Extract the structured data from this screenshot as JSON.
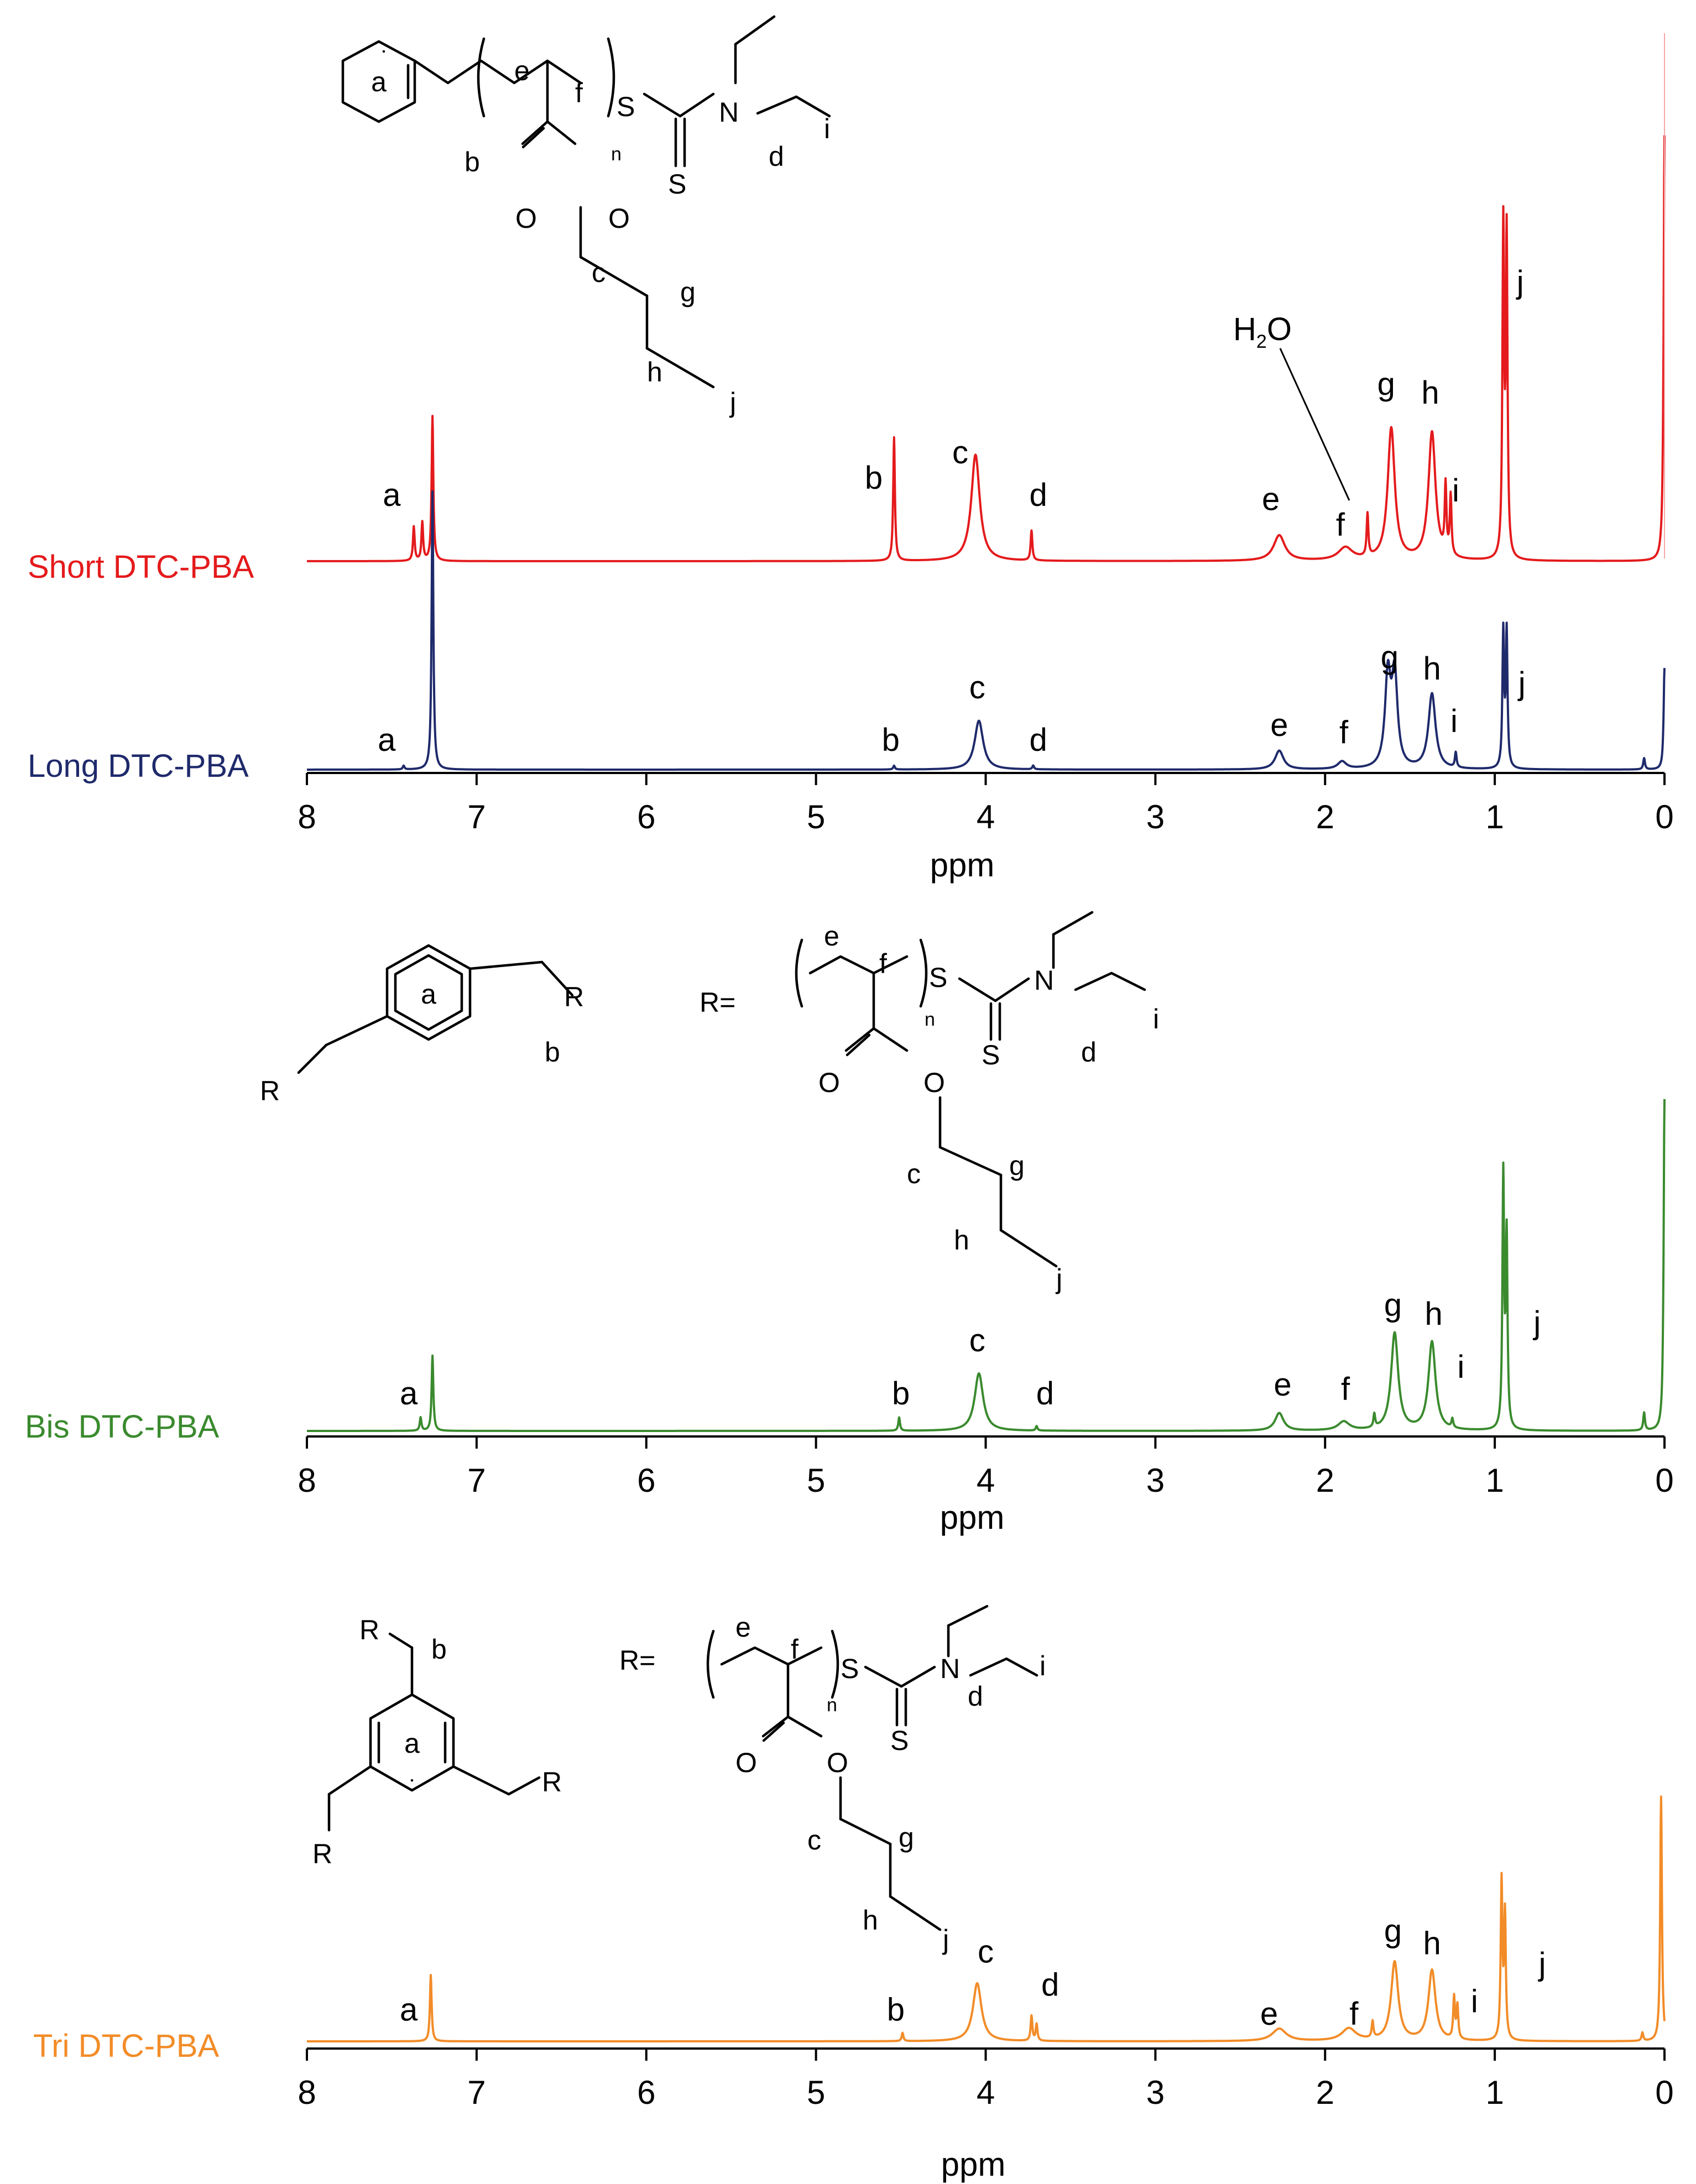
{
  "chart_data": [
    {
      "type": "line",
      "xlabel": "ppm",
      "xlim": [
        8,
        0
      ],
      "x_reversed": true,
      "ticks": [
        "8",
        "7",
        "6",
        "5",
        "4",
        "3",
        "2",
        "1",
        "0"
      ],
      "grid": false,
      "structure_labels": {
        "atoms": [
          "S",
          "N",
          "S",
          "O",
          "O"
        ],
        "n": "n",
        "letters": [
          "a",
          "b",
          "c",
          "d",
          "e",
          "f",
          "g",
          "h",
          "i",
          "j"
        ]
      },
      "water_label": {
        "main": "H",
        "sub": "2",
        "tail": "O"
      },
      "series": [
        {
          "name": "Short DTC-PBA",
          "color": "#e41a1c",
          "peaks": [
            {
              "x": 7.37,
              "height": 0.08
            },
            {
              "x": 7.32,
              "height": 0.09
            },
            {
              "x": 7.26,
              "height": 0.34
            },
            {
              "x": 4.54,
              "height": 0.29
            },
            {
              "x": 4.06,
              "height": 0.25,
              "width": 0.03
            },
            {
              "x": 3.73,
              "height": 0.07
            },
            {
              "x": 2.27,
              "height": 0.06,
              "width": 0.04
            },
            {
              "x": 1.88,
              "height": 0.03,
              "width": 0.05
            },
            {
              "x": 1.75,
              "height": 0.1
            },
            {
              "x": 1.61,
              "height": 0.31,
              "width": 0.025
            },
            {
              "x": 1.37,
              "height": 0.3,
              "width": 0.025
            },
            {
              "x": 1.29,
              "height": 0.16
            },
            {
              "x": 1.26,
              "height": 0.14
            },
            {
              "x": 0.95,
              "height": 0.77
            },
            {
              "x": 0.93,
              "height": 0.75
            },
            {
              "x": 0.0,
              "height": 1.0
            }
          ],
          "labels": [
            {
              "text": "a",
              "x": 7.5,
              "y": 0.13
            },
            {
              "text": "b",
              "x": 4.66,
              "y": 0.17
            },
            {
              "text": "c",
              "x": 4.15,
              "y": 0.23
            },
            {
              "text": "d",
              "x": 3.69,
              "y": 0.13
            },
            {
              "text": "e",
              "x": 2.32,
              "y": 0.12
            },
            {
              "text": "f",
              "x": 1.91,
              "y": 0.06
            },
            {
              "text": "g",
              "x": 1.64,
              "y": 0.39
            },
            {
              "text": "h",
              "x": 1.38,
              "y": 0.37
            },
            {
              "text": "i",
              "x": 1.23,
              "y": 0.14
            },
            {
              "text": "j",
              "x": 0.85,
              "y": 0.63
            }
          ]
        },
        {
          "name": "Long DTC-PBA",
          "color": "#1f2a6b",
          "peaks": [
            {
              "x": 7.43,
              "height": 0.01
            },
            {
              "x": 7.26,
              "height": 0.74
            },
            {
              "x": 4.54,
              "height": 0.01
            },
            {
              "x": 4.04,
              "height": 0.13,
              "width": 0.03
            },
            {
              "x": 3.72,
              "height": 0.01
            },
            {
              "x": 2.27,
              "height": 0.05,
              "width": 0.03
            },
            {
              "x": 1.9,
              "height": 0.02,
              "width": 0.03
            },
            {
              "x": 1.63,
              "height": 0.24,
              "width": 0.02
            },
            {
              "x": 1.59,
              "height": 0.24,
              "width": 0.02
            },
            {
              "x": 1.37,
              "height": 0.2,
              "width": 0.025
            },
            {
              "x": 1.23,
              "height": 0.04
            },
            {
              "x": 0.95,
              "height": 0.36
            },
            {
              "x": 0.93,
              "height": 0.36
            },
            {
              "x": 0.12,
              "height": 0.03
            },
            {
              "x": 0.0,
              "height": 0.27
            }
          ],
          "labels": [
            {
              "text": "a",
              "x": 7.53,
              "y": 0.05
            },
            {
              "text": "b",
              "x": 4.56,
              "y": 0.05
            },
            {
              "text": "c",
              "x": 4.05,
              "y": 0.19
            },
            {
              "text": "d",
              "x": 3.69,
              "y": 0.05
            },
            {
              "text": "e",
              "x": 2.27,
              "y": 0.09
            },
            {
              "text": "f",
              "x": 1.89,
              "y": 0.07
            },
            {
              "text": "g",
              "x": 1.62,
              "y": 0.27
            },
            {
              "text": "h",
              "x": 1.37,
              "y": 0.24
            },
            {
              "text": "i",
              "x": 1.24,
              "y": 0.1
            },
            {
              "text": "j",
              "x": 0.84,
              "y": 0.2
            }
          ]
        },
        {
          "name": "Bis DTC-PBA",
          "color": "#3a8a2e",
          "peaks": [
            {
              "x": 7.33,
              "height": 0.03
            },
            {
              "x": 7.26,
              "height": 0.17
            },
            {
              "x": 4.51,
              "height": 0.03
            },
            {
              "x": 4.04,
              "height": 0.13,
              "width": 0.03
            },
            {
              "x": 3.7,
              "height": 0.01
            },
            {
              "x": 2.27,
              "height": 0.04,
              "width": 0.03
            },
            {
              "x": 1.89,
              "height": 0.02,
              "width": 0.04
            },
            {
              "x": 1.71,
              "height": 0.03
            },
            {
              "x": 1.59,
              "height": 0.22,
              "width": 0.025
            },
            {
              "x": 1.37,
              "height": 0.2,
              "width": 0.025
            },
            {
              "x": 1.25,
              "height": 0.02
            },
            {
              "x": 0.95,
              "height": 0.57
            },
            {
              "x": 0.93,
              "height": 0.43
            },
            {
              "x": 0.12,
              "height": 0.04
            },
            {
              "x": 0.0,
              "height": 0.75
            }
          ],
          "labels": [
            {
              "text": "a",
              "x": 7.4,
              "y": 0.06
            },
            {
              "text": "b",
              "x": 4.5,
              "y": 0.06
            },
            {
              "text": "c",
              "x": 4.05,
              "y": 0.18
            },
            {
              "text": "d",
              "x": 3.65,
              "y": 0.06
            },
            {
              "text": "e",
              "x": 2.25,
              "y": 0.08
            },
            {
              "text": "f",
              "x": 1.88,
              "y": 0.07
            },
            {
              "text": "g",
              "x": 1.6,
              "y": 0.26
            },
            {
              "text": "h",
              "x": 1.36,
              "y": 0.24
            },
            {
              "text": "i",
              "x": 1.2,
              "y": 0.12
            },
            {
              "text": "j",
              "x": 0.75,
              "y": 0.22
            }
          ]
        },
        {
          "name": "Tri DTC-PBA",
          "color": "#f28c28",
          "peaks": [
            {
              "x": 7.27,
              "height": 0.16
            },
            {
              "x": 4.49,
              "height": 0.02
            },
            {
              "x": 4.05,
              "height": 0.14,
              "width": 0.03
            },
            {
              "x": 3.73,
              "height": 0.06
            },
            {
              "x": 3.7,
              "height": 0.04
            },
            {
              "x": 2.27,
              "height": 0.03,
              "width": 0.05
            },
            {
              "x": 1.86,
              "height": 0.03,
              "width": 0.05
            },
            {
              "x": 1.72,
              "height": 0.04
            },
            {
              "x": 1.59,
              "height": 0.19,
              "width": 0.025
            },
            {
              "x": 1.37,
              "height": 0.17,
              "width": 0.025
            },
            {
              "x": 1.24,
              "height": 0.1
            },
            {
              "x": 1.22,
              "height": 0.08
            },
            {
              "x": 0.96,
              "height": 0.38
            },
            {
              "x": 0.94,
              "height": 0.3
            },
            {
              "x": 0.13,
              "height": 0.02
            },
            {
              "x": 0.02,
              "height": 0.59
            }
          ],
          "labels": [
            {
              "text": "a",
              "x": 7.4,
              "y": 0.05
            },
            {
              "text": "b",
              "x": 4.53,
              "y": 0.05
            },
            {
              "text": "c",
              "x": 4.0,
              "y": 0.19
            },
            {
              "text": "d",
              "x": 3.62,
              "y": 0.11
            },
            {
              "text": "e",
              "x": 2.33,
              "y": 0.04
            },
            {
              "text": "f",
              "x": 1.83,
              "y": 0.04
            },
            {
              "text": "g",
              "x": 1.6,
              "y": 0.24
            },
            {
              "text": "h",
              "x": 1.37,
              "y": 0.21
            },
            {
              "text": "i",
              "x": 1.12,
              "y": 0.07
            },
            {
              "text": "j",
              "x": 0.72,
              "y": 0.16
            }
          ]
        }
      ]
    }
  ]
}
